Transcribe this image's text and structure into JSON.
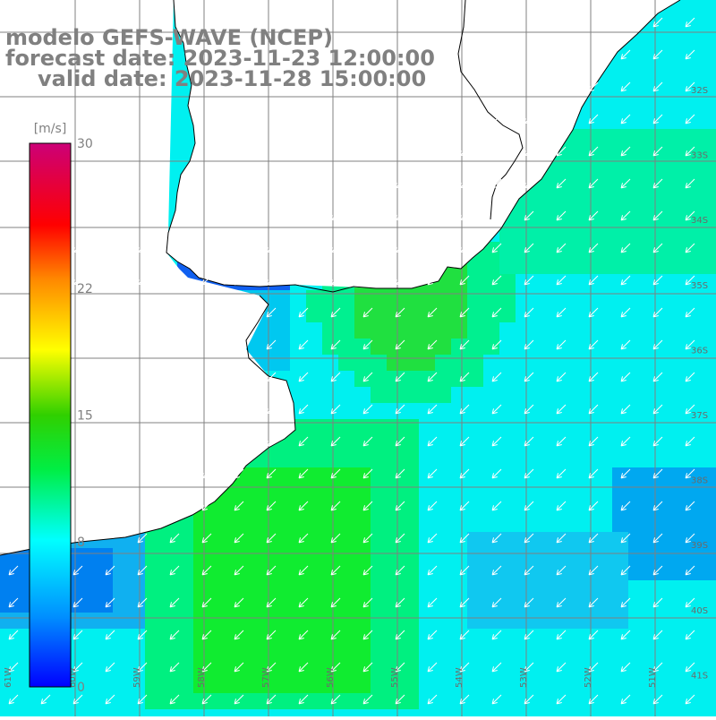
{
  "title": {
    "model": "modelo GEFS-WAVE (NCEP)",
    "forecast": "forecast date: 2023-11-23 12:00:00",
    "valid": "valid date: 2023-11-28 15:00:00"
  },
  "colorbar": {
    "unit": "[m/s]",
    "ticks": [
      "0",
      "8",
      "15",
      "22",
      "30"
    ],
    "range": [
      0,
      30
    ]
  },
  "grid": {
    "lon_labels": [
      "61W",
      "60W",
      "59W",
      "58W",
      "57W",
      "56W",
      "55W",
      "54W",
      "53W",
      "52W",
      "51W"
    ],
    "lat_labels": [
      "32S",
      "33S",
      "34S",
      "35S",
      "36S",
      "37S",
      "38S",
      "39S",
      "40S",
      "41S"
    ]
  },
  "colors": {
    "land": "#ffffff",
    "coast": "#000000",
    "grid": "#808080",
    "arrow": "#ffffff",
    "title": "#808080"
  },
  "map_data": {
    "variable": "wind speed",
    "units": "m/s",
    "direction": "from north-east"
  }
}
